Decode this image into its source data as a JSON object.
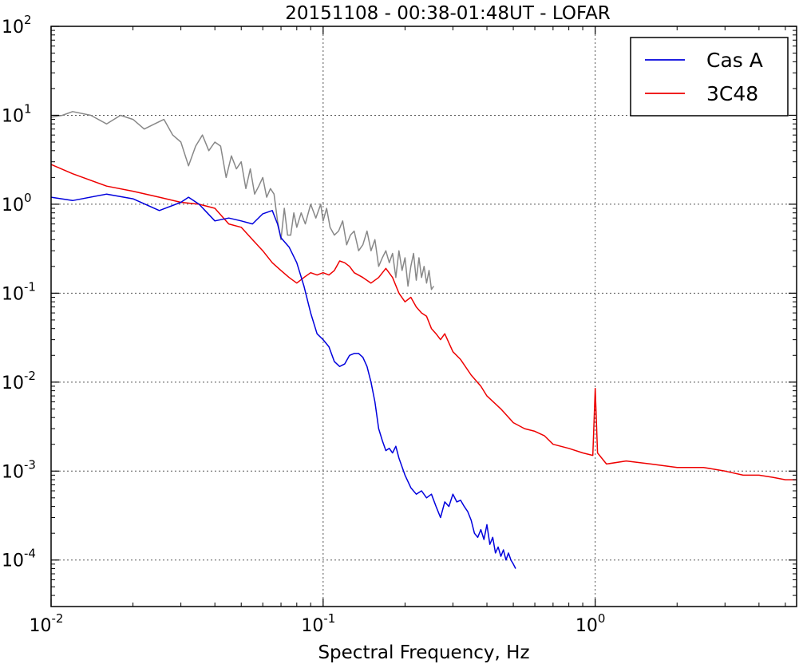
{
  "chart_data": {
    "type": "line",
    "title": "20151108 - 00:38-01:48UT - LOFAR",
    "xlabel": "Spectral Frequency, Hz",
    "ylabel": "",
    "xscale": "log",
    "yscale": "log",
    "xlim": [
      0.01,
      5.5
    ],
    "ylim": [
      3e-05,
      100
    ],
    "grid": true,
    "legend_position": "top-right",
    "x_ticks": [
      {
        "value": 0.01,
        "base": "10",
        "exp": "-2"
      },
      {
        "value": 0.1,
        "base": "10",
        "exp": "-1"
      },
      {
        "value": 1,
        "base": "10",
        "exp": "0"
      }
    ],
    "y_ticks": [
      {
        "value": 100,
        "base": "10",
        "exp": "2"
      },
      {
        "value": 10,
        "base": "10",
        "exp": "1"
      },
      {
        "value": 1,
        "base": "10",
        "exp": "0"
      },
      {
        "value": 0.1,
        "base": "10",
        "exp": "-1"
      },
      {
        "value": 0.01,
        "base": "10",
        "exp": "-2"
      },
      {
        "value": 0.001,
        "base": "10",
        "exp": "-3"
      },
      {
        "value": 0.0001,
        "base": "10",
        "exp": "-4"
      }
    ],
    "series": [
      {
        "name": "Cas A",
        "color": "#0000dd",
        "in_legend": true,
        "x": [
          0.01,
          0.012,
          0.016,
          0.02,
          0.025,
          0.03,
          0.032,
          0.035,
          0.04,
          0.045,
          0.05,
          0.055,
          0.06,
          0.065,
          0.068,
          0.07,
          0.075,
          0.08,
          0.085,
          0.09,
          0.095,
          0.1,
          0.105,
          0.11,
          0.115,
          0.12,
          0.125,
          0.13,
          0.135,
          0.14,
          0.145,
          0.15,
          0.155,
          0.16,
          0.165,
          0.17,
          0.175,
          0.18,
          0.185,
          0.19,
          0.2,
          0.21,
          0.22,
          0.23,
          0.24,
          0.25,
          0.26,
          0.27,
          0.28,
          0.29,
          0.3,
          0.31,
          0.32,
          0.33,
          0.34,
          0.35,
          0.36,
          0.37,
          0.38,
          0.39,
          0.4,
          0.41,
          0.42,
          0.43,
          0.44,
          0.45,
          0.46,
          0.47,
          0.48,
          0.49,
          0.5,
          0.51
        ],
        "values": [
          1.2,
          1.1,
          1.3,
          1.15,
          0.85,
          1.05,
          1.2,
          1.0,
          0.65,
          0.7,
          0.65,
          0.6,
          0.78,
          0.85,
          0.6,
          0.42,
          0.33,
          0.22,
          0.12,
          0.06,
          0.035,
          0.03,
          0.025,
          0.017,
          0.015,
          0.016,
          0.02,
          0.021,
          0.021,
          0.019,
          0.015,
          0.01,
          0.006,
          0.003,
          0.0022,
          0.0017,
          0.0018,
          0.0016,
          0.0019,
          0.0014,
          0.0009,
          0.00065,
          0.00055,
          0.0006,
          0.0005,
          0.00055,
          0.0004,
          0.0003,
          0.00045,
          0.0004,
          0.00055,
          0.00045,
          0.00047,
          0.0004,
          0.00035,
          0.00028,
          0.0002,
          0.00018,
          0.00022,
          0.00017,
          0.00025,
          0.00015,
          0.00018,
          0.00012,
          0.00014,
          0.00011,
          0.00013,
          0.0001,
          0.00012,
          0.0001,
          9e-05,
          8e-05
        ]
      },
      {
        "name": "3C48",
        "color": "#ee0000",
        "in_legend": true,
        "x": [
          0.01,
          0.012,
          0.016,
          0.02,
          0.025,
          0.03,
          0.035,
          0.04,
          0.045,
          0.05,
          0.055,
          0.06,
          0.065,
          0.07,
          0.075,
          0.08,
          0.085,
          0.09,
          0.095,
          0.1,
          0.105,
          0.11,
          0.115,
          0.12,
          0.125,
          0.13,
          0.14,
          0.15,
          0.16,
          0.17,
          0.18,
          0.19,
          0.2,
          0.21,
          0.22,
          0.23,
          0.24,
          0.25,
          0.26,
          0.27,
          0.28,
          0.3,
          0.32,
          0.35,
          0.38,
          0.4,
          0.45,
          0.5,
          0.55,
          0.6,
          0.65,
          0.7,
          0.8,
          0.9,
          0.98,
          1.0,
          1.02,
          1.1,
          1.3,
          1.6,
          2.0,
          2.5,
          3.0,
          3.5,
          4.0,
          4.5,
          5.0,
          5.5
        ],
        "values": [
          2.8,
          2.2,
          1.6,
          1.4,
          1.2,
          1.05,
          1.0,
          0.9,
          0.6,
          0.55,
          0.4,
          0.3,
          0.22,
          0.18,
          0.15,
          0.13,
          0.15,
          0.17,
          0.16,
          0.17,
          0.16,
          0.18,
          0.23,
          0.22,
          0.2,
          0.17,
          0.15,
          0.13,
          0.15,
          0.19,
          0.15,
          0.1,
          0.08,
          0.09,
          0.07,
          0.06,
          0.055,
          0.04,
          0.035,
          0.03,
          0.035,
          0.022,
          0.018,
          0.012,
          0.009,
          0.007,
          0.005,
          0.0035,
          0.003,
          0.0028,
          0.0025,
          0.002,
          0.0018,
          0.0016,
          0.0015,
          0.0085,
          0.0016,
          0.0012,
          0.0013,
          0.0012,
          0.0011,
          0.0011,
          0.001,
          0.0009,
          0.0009,
          0.00085,
          0.0008,
          0.0008
        ]
      },
      {
        "color": "#888888",
        "in_legend": false,
        "x": [
          0.01,
          0.011,
          0.012,
          0.014,
          0.016,
          0.018,
          0.02,
          0.022,
          0.024,
          0.026,
          0.028,
          0.03,
          0.032,
          0.034,
          0.036,
          0.038,
          0.04,
          0.042,
          0.044,
          0.046,
          0.048,
          0.05,
          0.052,
          0.054,
          0.056,
          0.058,
          0.06,
          0.062,
          0.064,
          0.066,
          0.068,
          0.07,
          0.072,
          0.074,
          0.076,
          0.078,
          0.08,
          0.083,
          0.086,
          0.09,
          0.094,
          0.098,
          0.1,
          0.103,
          0.106,
          0.11,
          0.114,
          0.118,
          0.122,
          0.126,
          0.13,
          0.135,
          0.14,
          0.145,
          0.15,
          0.155,
          0.16,
          0.165,
          0.17,
          0.175,
          0.18,
          0.185,
          0.19,
          0.195,
          0.2,
          0.205,
          0.21,
          0.215,
          0.22,
          0.225,
          0.23,
          0.235,
          0.24,
          0.245,
          0.25,
          0.255
        ],
        "values": [
          9.5,
          10,
          11,
          10,
          8,
          10,
          9,
          7,
          8,
          9,
          6,
          5,
          2.7,
          4.5,
          6,
          4,
          5,
          4.5,
          2,
          3.5,
          2.5,
          3,
          1.5,
          2.5,
          1.3,
          1.6,
          2,
          1.2,
          1.5,
          1.3,
          0.65,
          0.4,
          0.9,
          0.45,
          0.45,
          0.8,
          0.55,
          0.8,
          0.6,
          1.0,
          0.7,
          1.0,
          0.65,
          0.9,
          0.55,
          0.45,
          0.5,
          0.65,
          0.35,
          0.45,
          0.5,
          0.3,
          0.35,
          0.5,
          0.3,
          0.4,
          0.2,
          0.25,
          0.3,
          0.22,
          0.28,
          0.15,
          0.3,
          0.18,
          0.25,
          0.12,
          0.2,
          0.28,
          0.14,
          0.25,
          0.15,
          0.2,
          0.13,
          0.18,
          0.11,
          0.12
        ]
      }
    ]
  }
}
